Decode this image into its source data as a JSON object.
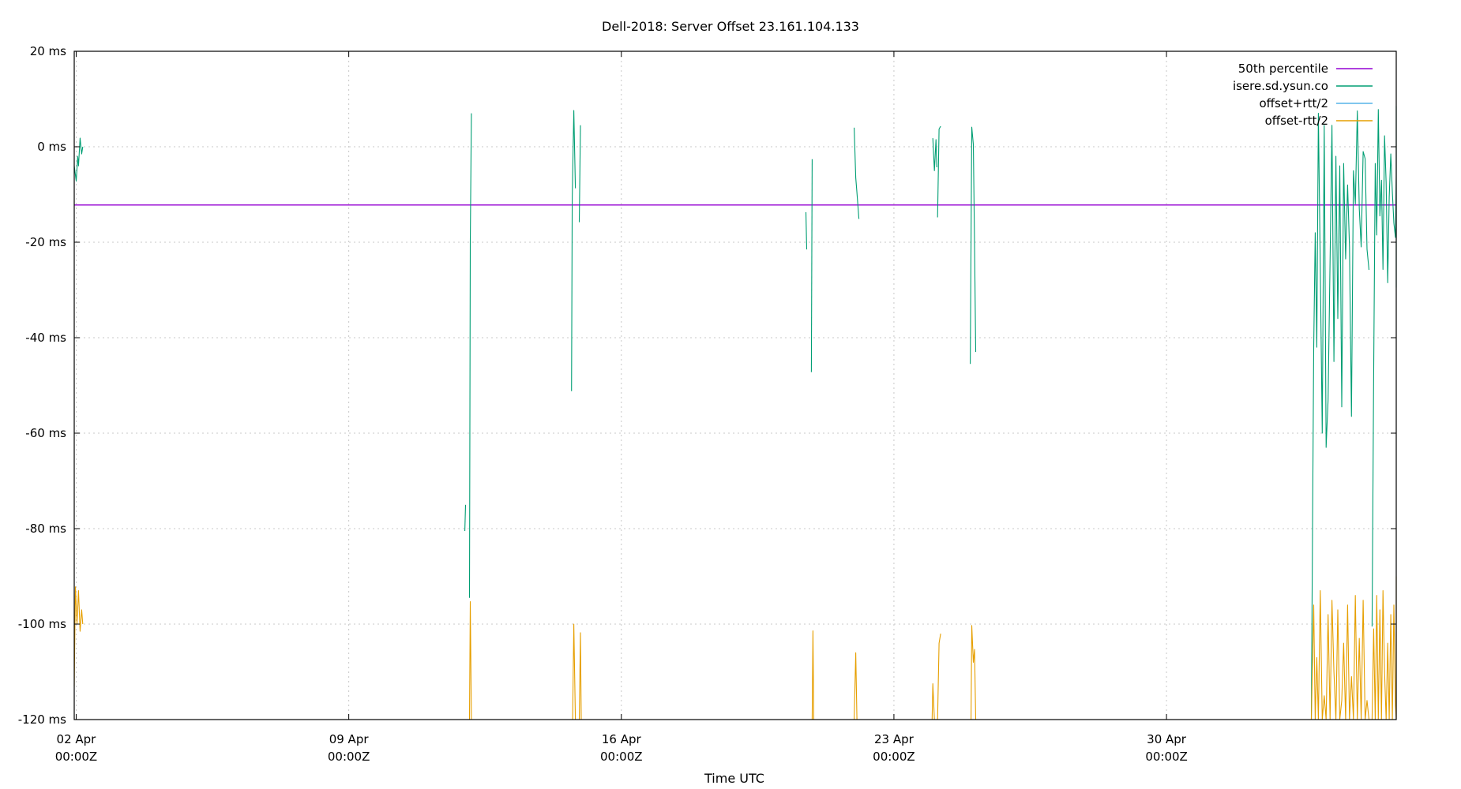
{
  "chart_data": {
    "type": "line",
    "title": "Dell-2018: Server Offset 23.161.104.133",
    "xlabel": "Time UTC",
    "ylabel": "",
    "ylim": [
      -120,
      20
    ],
    "xlim": [
      -0.05,
      33.9
    ],
    "grid": true,
    "legend_position": "top-right",
    "y_ticks": [
      {
        "value": 20,
        "label": "20 ms"
      },
      {
        "value": 0,
        "label": "0 ms"
      },
      {
        "value": -20,
        "label": "-20 ms"
      },
      {
        "value": -40,
        "label": "-40 ms"
      },
      {
        "value": -60,
        "label": "-60 ms"
      },
      {
        "value": -80,
        "label": "-80 ms"
      },
      {
        "value": -100,
        "label": "-100 ms"
      },
      {
        "value": -120,
        "label": "-120 ms"
      }
    ],
    "x_ticks": [
      {
        "value": 0,
        "date": "02 Apr",
        "time": "00:00Z"
      },
      {
        "value": 7,
        "date": "09 Apr",
        "time": "00:00Z"
      },
      {
        "value": 14,
        "date": "16 Apr",
        "time": "00:00Z"
      },
      {
        "value": 21,
        "date": "23 Apr",
        "time": "00:00Z"
      },
      {
        "value": 28,
        "date": "30 Apr",
        "time": "00:00Z"
      }
    ],
    "series": [
      {
        "name": "50th percentile",
        "color": "#9400d3",
        "kind": "hline",
        "value": -12.2
      },
      {
        "name": "isere.sd.ysun.co",
        "color": "#009e73",
        "kind": "segments",
        "segments": [
          [
            [
              -0.05,
              -4
            ],
            [
              0.0,
              -7.2
            ],
            [
              0.04,
              -2
            ],
            [
              0.06,
              -4
            ],
            [
              0.1,
              1.8
            ],
            [
              0.14,
              -1.5
            ],
            [
              0.17,
              0
            ]
          ],
          [
            [
              9.98,
              -80.5
            ],
            [
              10.0,
              -75
            ]
          ],
          [
            [
              10.1,
              -94.5
            ],
            [
              10.12,
              -20
            ],
            [
              10.15,
              7
            ]
          ],
          [
            [
              12.72,
              -51.2
            ],
            [
              12.74,
              -10.6
            ],
            [
              12.78,
              7.6
            ],
            [
              12.82,
              -8.7
            ]
          ],
          [
            [
              12.92,
              -15.8
            ],
            [
              12.95,
              4.5
            ]
          ],
          [
            [
              18.74,
              -13.7
            ],
            [
              18.76,
              -21.5
            ]
          ],
          [
            [
              18.88,
              -47.2
            ],
            [
              18.9,
              -2.6
            ]
          ],
          [
            [
              19.98,
              4
            ],
            [
              20.02,
              -6.5
            ],
            [
              20.05,
              -9.6
            ],
            [
              20.1,
              -15.1
            ]
          ],
          [
            [
              22.0,
              1.8
            ],
            [
              22.04,
              -5
            ],
            [
              22.08,
              1.5
            ],
            [
              22.1,
              -4.3
            ]
          ],
          [
            [
              22.12,
              -14.8
            ],
            [
              22.16,
              3.7
            ],
            [
              22.2,
              4.3
            ]
          ],
          [
            [
              22.96,
              -45.5
            ],
            [
              23.0,
              4.1
            ],
            [
              23.04,
              0.5
            ],
            [
              23.07,
              -20.1
            ],
            [
              23.1,
              -43
            ]
          ],
          [
            [
              31.72,
              -120
            ],
            [
              31.75,
              -80
            ],
            [
              31.78,
              -42
            ],
            [
              31.82,
              -18
            ],
            [
              31.86,
              -42
            ],
            [
              31.9,
              7
            ],
            [
              31.95,
              -25
            ],
            [
              32.0,
              -60
            ],
            [
              32.05,
              4.5
            ],
            [
              32.1,
              -63
            ],
            [
              32.15,
              -53
            ],
            [
              32.2,
              -24
            ],
            [
              32.25,
              4.5
            ],
            [
              32.3,
              -45
            ],
            [
              32.35,
              -2
            ],
            [
              32.4,
              -36
            ],
            [
              32.45,
              -4
            ],
            [
              32.5,
              -54.5
            ],
            [
              32.55,
              -3.5
            ],
            [
              32.6,
              -23.5
            ],
            [
              32.65,
              -8
            ],
            [
              32.7,
              -21
            ],
            [
              32.75,
              -56.5
            ],
            [
              32.8,
              -5
            ],
            [
              32.85,
              -12
            ],
            [
              32.9,
              7.5
            ],
            [
              32.95,
              -13
            ],
            [
              33.0,
              -21
            ],
            [
              33.05,
              -1
            ],
            [
              33.1,
              -2.5
            ],
            [
              33.15,
              -21.5
            ],
            [
              33.2,
              -25.8
            ]
          ],
          [
            [
              33.28,
              -100.5
            ],
            [
              33.32,
              -48
            ],
            [
              33.36,
              -3.5
            ],
            [
              33.4,
              -18.5
            ],
            [
              33.44,
              7.8
            ],
            [
              33.48,
              -14.5
            ],
            [
              33.52,
              -7
            ],
            [
              33.56,
              -25.7
            ],
            [
              33.6,
              2.3
            ],
            [
              33.64,
              -7.5
            ],
            [
              33.68,
              -28.5
            ],
            [
              33.72,
              -10.5
            ],
            [
              33.76,
              -1.5
            ],
            [
              33.8,
              -9.6
            ],
            [
              33.84,
              -16
            ],
            [
              33.88,
              -19
            ],
            [
              33.92,
              -6
            ],
            [
              33.96,
              -2
            ],
            [
              34.0,
              -11
            ],
            [
              34.04,
              -8
            ],
            [
              34.08,
              -15
            ],
            [
              34.12,
              -12.4
            ],
            [
              34.16,
              -3.5
            ],
            [
              34.2,
              0
            ],
            [
              34.24,
              -12.5
            ],
            [
              34.28,
              -6.8
            ],
            [
              34.32,
              -21
            ],
            [
              34.36,
              -4
            ],
            [
              34.4,
              -11
            ],
            [
              34.44,
              -9
            ],
            [
              34.48,
              -26
            ],
            [
              34.52,
              8.5
            ],
            [
              34.56,
              -5.6
            ],
            [
              34.6,
              -14
            ],
            [
              34.64,
              -8
            ],
            [
              34.68,
              -2
            ],
            [
              34.72,
              3
            ],
            [
              34.76,
              -10.5
            ],
            [
              34.8,
              -29.5
            ],
            [
              34.84,
              -10
            ],
            [
              34.88,
              8
            ],
            [
              34.92,
              -16
            ],
            [
              34.96,
              -13
            ]
          ]
        ]
      },
      {
        "name": "offset+rtt/2",
        "color": "#56b4e9",
        "kind": "segments",
        "segments": []
      },
      {
        "name": "offset-rtt/2",
        "color": "#e69f00",
        "kind": "segments",
        "segments": [
          [
            [
              -0.05,
              -113
            ],
            [
              -0.02,
              -92.2
            ],
            [
              0.02,
              -100
            ],
            [
              0.06,
              -93
            ],
            [
              0.1,
              -101.5
            ],
            [
              0.14,
              -97
            ],
            [
              0.17,
              -100
            ]
          ],
          [
            [
              10.1,
              -120
            ],
            [
              10.12,
              -95.3
            ],
            [
              10.15,
              -120
            ]
          ],
          [
            [
              12.75,
              -120
            ],
            [
              12.78,
              -100
            ],
            [
              12.82,
              -120
            ]
          ],
          [
            [
              12.92,
              -120
            ],
            [
              12.95,
              -101.8
            ],
            [
              12.97,
              -120
            ]
          ],
          [
            [
              18.9,
              -120
            ],
            [
              18.92,
              -101.4
            ],
            [
              18.94,
              -120
            ]
          ],
          [
            [
              19.98,
              -120
            ],
            [
              20.02,
              -106
            ],
            [
              20.05,
              -120
            ]
          ],
          [
            [
              21.98,
              -120
            ],
            [
              22.0,
              -112.5
            ],
            [
              22.04,
              -120
            ]
          ],
          [
            [
              22.12,
              -120
            ],
            [
              22.16,
              -104
            ],
            [
              22.2,
              -102
            ]
          ],
          [
            [
              22.98,
              -120
            ],
            [
              23.0,
              -100.3
            ],
            [
              23.04,
              -108
            ],
            [
              23.07,
              -105.3
            ],
            [
              23.1,
              -120
            ]
          ],
          [
            [
              31.72,
              -120
            ],
            [
              31.78,
              -96
            ],
            [
              31.82,
              -120
            ],
            [
              31.86,
              -107
            ],
            [
              31.9,
              -120
            ],
            [
              31.95,
              -93
            ],
            [
              32.0,
              -120
            ],
            [
              32.05,
              -115
            ],
            [
              32.1,
              -120
            ],
            [
              32.15,
              -98
            ],
            [
              32.2,
              -120
            ],
            [
              32.25,
              -95
            ],
            [
              32.3,
              -110
            ],
            [
              32.35,
              -120
            ],
            [
              32.4,
              -97
            ],
            [
              32.45,
              -120
            ],
            [
              32.5,
              -116
            ],
            [
              32.55,
              -104
            ],
            [
              32.6,
              -120
            ],
            [
              32.65,
              -96
            ],
            [
              32.7,
              -120
            ],
            [
              32.75,
              -111
            ],
            [
              32.8,
              -120
            ],
            [
              32.85,
              -94
            ],
            [
              32.9,
              -120
            ],
            [
              32.95,
              -103
            ],
            [
              33.0,
              -120
            ],
            [
              33.05,
              -95
            ],
            [
              33.1,
              -120
            ],
            [
              33.15,
              -116
            ],
            [
              33.2,
              -120
            ]
          ],
          [
            [
              33.28,
              -120
            ],
            [
              33.32,
              -101
            ],
            [
              33.36,
              -120
            ],
            [
              33.4,
              -94
            ],
            [
              33.44,
              -120
            ],
            [
              33.48,
              -97
            ],
            [
              33.52,
              -120
            ],
            [
              33.56,
              -93
            ],
            [
              33.6,
              -110
            ],
            [
              33.64,
              -120
            ],
            [
              33.68,
              -104
            ],
            [
              33.72,
              -120
            ],
            [
              33.76,
              -98
            ],
            [
              33.8,
              -120
            ],
            [
              33.84,
              -96
            ],
            [
              33.88,
              -117
            ],
            [
              33.92,
              -120
            ],
            [
              33.96,
              -101
            ],
            [
              34.0,
              -120
            ],
            [
              34.04,
              -103
            ],
            [
              34.08,
              -120
            ],
            [
              34.12,
              -95
            ],
            [
              34.16,
              -120
            ],
            [
              34.2,
              -112
            ],
            [
              34.24,
              -120
            ],
            [
              34.28,
              -94
            ],
            [
              34.32,
              -120
            ],
            [
              34.36,
              -105
            ],
            [
              34.4,
              -120
            ],
            [
              34.44,
              -93
            ],
            [
              34.48,
              -120
            ],
            [
              34.52,
              -90
            ],
            [
              34.56,
              -114
            ],
            [
              34.6,
              -120
            ],
            [
              34.64,
              -98
            ],
            [
              34.68,
              -120
            ],
            [
              34.72,
              -92.5
            ],
            [
              34.76,
              -120
            ],
            [
              34.8,
              -102
            ],
            [
              34.84,
              -120
            ],
            [
              34.88,
              -95
            ],
            [
              34.92,
              -120
            ],
            [
              34.96,
              -108
            ]
          ]
        ]
      }
    ]
  }
}
